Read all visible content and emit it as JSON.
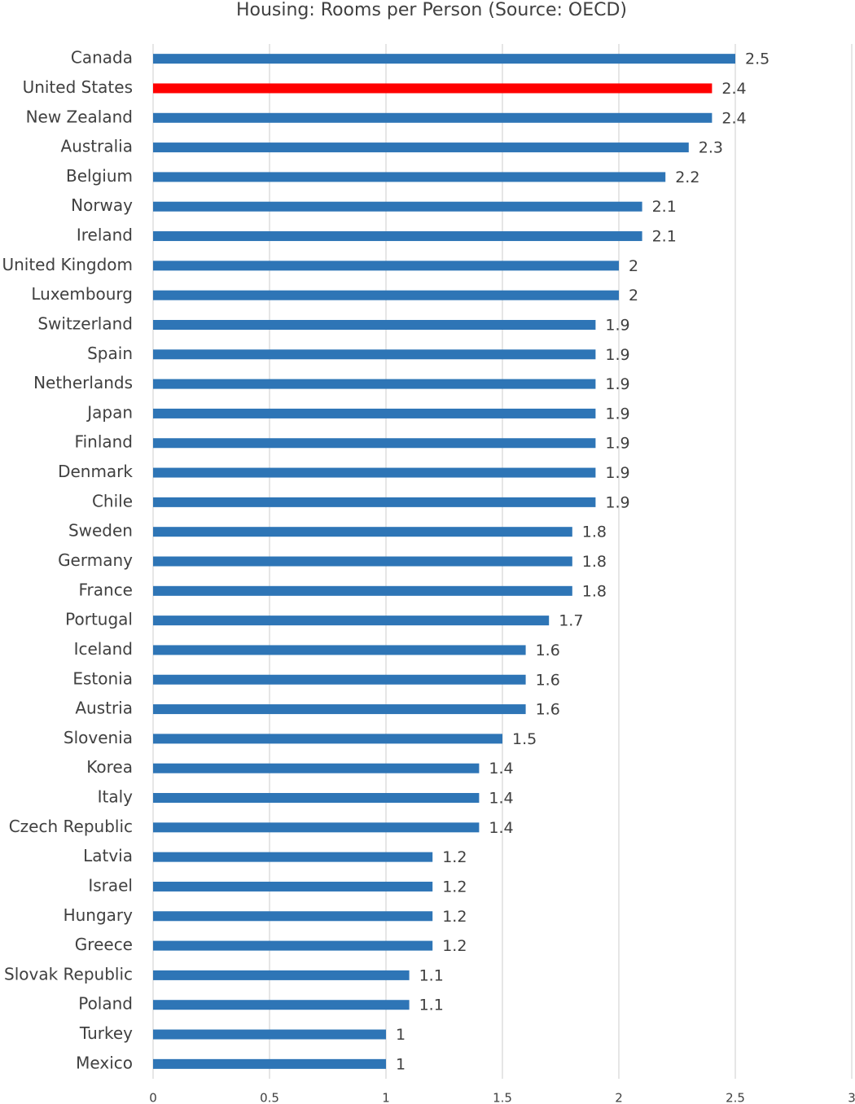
{
  "chart_data": {
    "type": "bar",
    "orientation": "horizontal",
    "title": "Housing: Rooms per Person (Source: OECD)",
    "categories": [
      "Canada",
      "United States",
      "New Zealand",
      "Australia",
      "Belgium",
      "Norway",
      "Ireland",
      "United Kingdom",
      "Luxembourg",
      "Switzerland",
      "Spain",
      "Netherlands",
      "Japan",
      "Finland",
      "Denmark",
      "Chile",
      "Sweden",
      "Germany",
      "France",
      "Portugal",
      "Iceland",
      "Estonia",
      "Austria",
      "Slovenia",
      "Korea",
      "Italy",
      "Czech Republic",
      "Latvia",
      "Israel",
      "Hungary",
      "Greece",
      "Slovak Republic",
      "Poland",
      "Turkey",
      "Mexico"
    ],
    "values": [
      2.5,
      2.4,
      2.4,
      2.3,
      2.2,
      2.1,
      2.1,
      2,
      2,
      1.9,
      1.9,
      1.9,
      1.9,
      1.9,
      1.9,
      1.9,
      1.8,
      1.8,
      1.8,
      1.7,
      1.6,
      1.6,
      1.6,
      1.5,
      1.4,
      1.4,
      1.4,
      1.2,
      1.2,
      1.2,
      1.2,
      1.1,
      1.1,
      1,
      1
    ],
    "color": "#2e75b6",
    "highlight": {
      "category": "United States",
      "color": "#ff0000"
    },
    "xlim": [
      0,
      3
    ],
    "xticks": [
      0,
      0.5,
      1,
      1.5,
      2,
      2.5,
      3
    ],
    "grid": true
  }
}
